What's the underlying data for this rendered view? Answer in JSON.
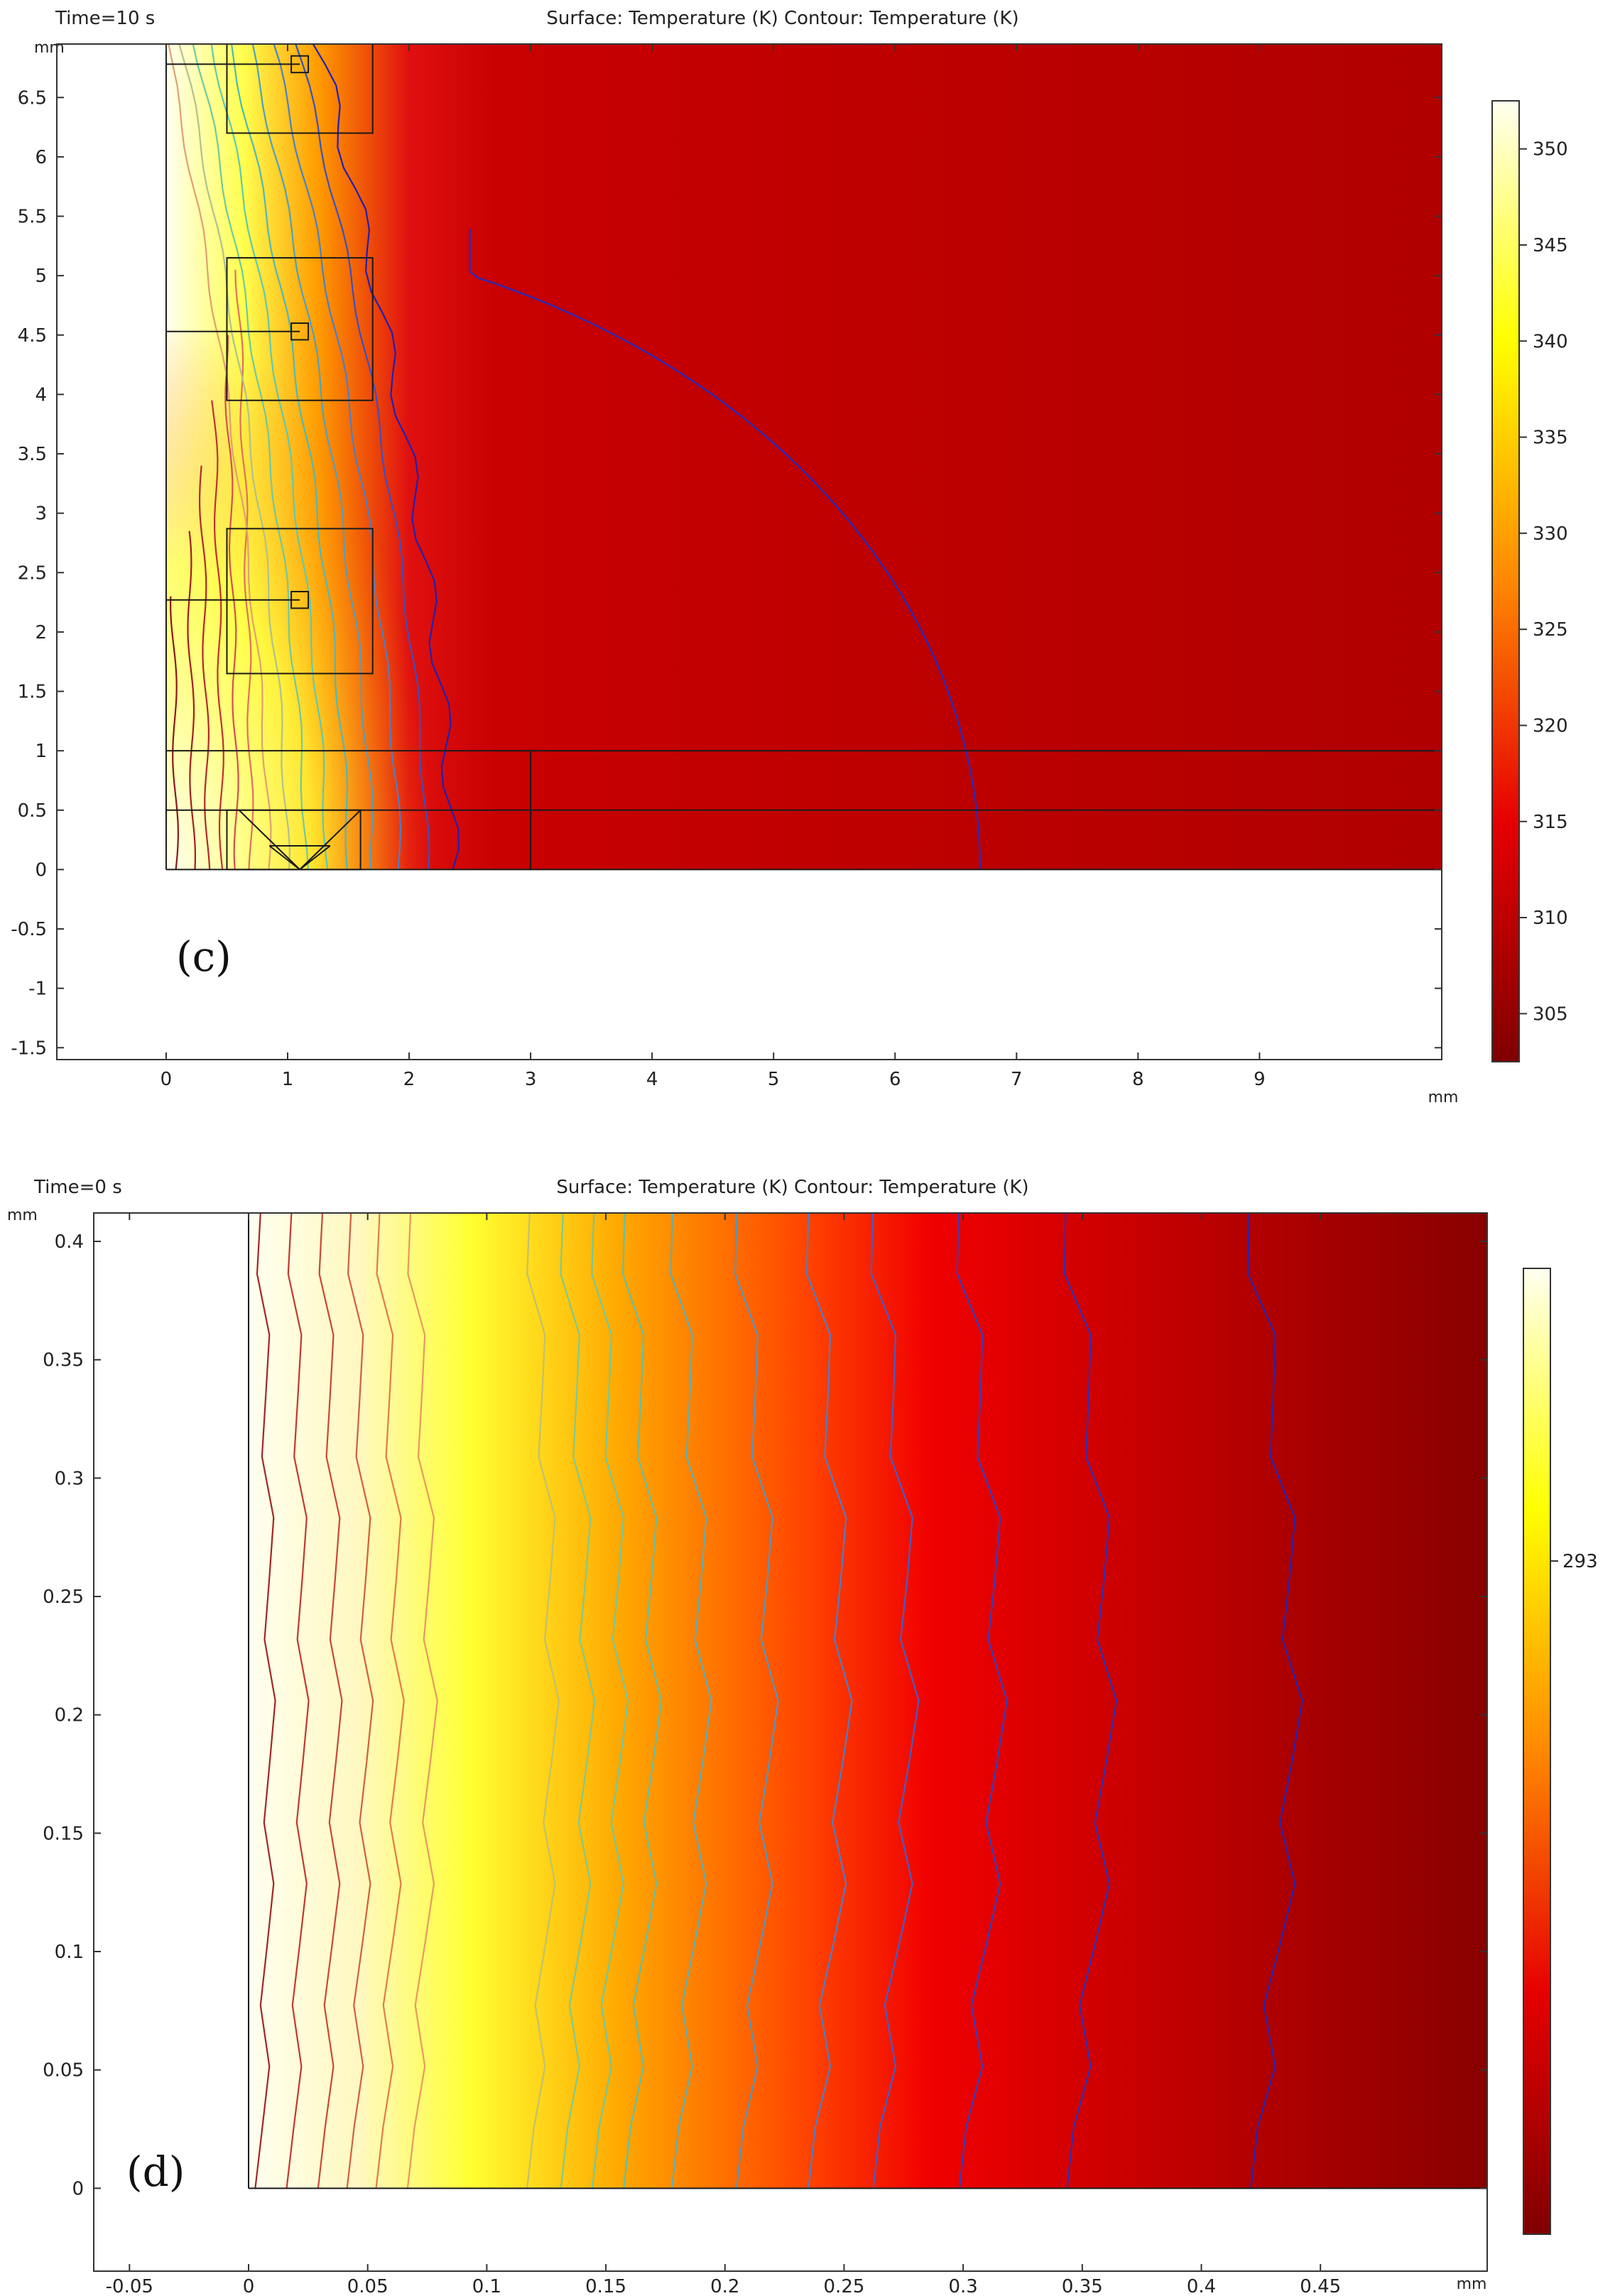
{
  "chart_data": [
    {
      "type": "heatmap",
      "panel_label": "(c)",
      "time_label": "Time=10 s",
      "title": "Surface: Temperature (K)  Contour: Temperature (K)",
      "x_unit": "mm",
      "y_unit": "mm",
      "xlim": [
        -0.9,
        10.5
      ],
      "ylim": [
        -1.6,
        6.95
      ],
      "x_ticks": [
        "0",
        "1",
        "2",
        "3",
        "4",
        "5",
        "6",
        "7",
        "8",
        "9"
      ],
      "y_ticks": [
        "-1.5",
        "-1",
        "-0.5",
        "0",
        "0.5",
        "1",
        "1.5",
        "2",
        "2.5",
        "3",
        "3.5",
        "4",
        "4.5",
        "5",
        "5.5",
        "6",
        "6.5"
      ],
      "color_scale": {
        "min": 302.5,
        "max": 352.5,
        "ticks": [
          "305",
          "310",
          "315",
          "320",
          "325",
          "330",
          "335",
          "340",
          "345",
          "350"
        ],
        "colors": [
          "#800000",
          "#e60000",
          "#ff8800",
          "#ffff00",
          "#fffff0"
        ]
      },
      "domain_extent": {
        "x": [
          0,
          10.5
        ],
        "y": [
          0,
          6.95
        ]
      },
      "annotations": [
        "(c)"
      ]
    },
    {
      "type": "heatmap",
      "panel_label": "(d)",
      "time_label": "Time=0 s",
      "title": "Surface: Temperature (K)  Contour: Temperature (K)",
      "x_unit": "mm",
      "y_unit": "mm",
      "xlim": [
        -0.065,
        0.52
      ],
      "ylim": [
        -0.035,
        0.412
      ],
      "x_ticks": [
        "-0.05",
        "0",
        "0.05",
        "0.1",
        "0.15",
        "0.2",
        "0.25",
        "0.3",
        "0.35",
        "0.4",
        "0.45"
      ],
      "y_ticks": [
        "0",
        "0.05",
        "0.1",
        "0.15",
        "0.2",
        "0.25",
        "0.3",
        "0.35",
        "0.4"
      ],
      "color_scale": {
        "ticks": [
          "293"
        ],
        "colors": [
          "#800000",
          "#e60000",
          "#ff8800",
          "#ffff00",
          "#fffff0"
        ]
      },
      "domain_extent": {
        "x": [
          0,
          0.52
        ],
        "y": [
          0,
          0.412
        ]
      },
      "annotations": [
        "(d)"
      ]
    }
  ]
}
